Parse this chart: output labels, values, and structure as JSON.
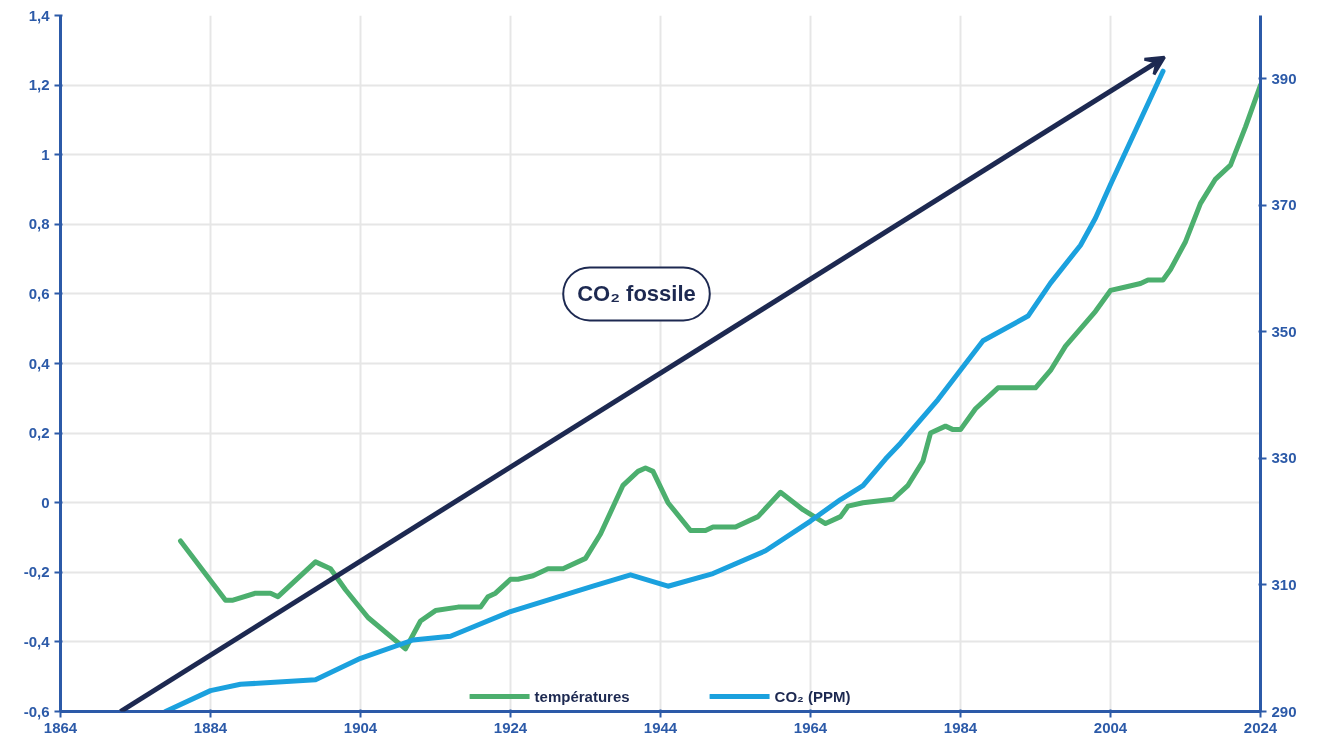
{
  "chart_data": {
    "type": "line",
    "xlim": [
      1864,
      2024
    ],
    "xticks": [
      1864,
      1884,
      1904,
      1924,
      1944,
      1964,
      1984,
      2004,
      2024
    ],
    "ylim": [
      -0.6,
      1.4
    ],
    "yticks": [
      {
        "value": -0.6,
        "label": "-0,6"
      },
      {
        "value": -0.4,
        "label": "-0,4"
      },
      {
        "value": -0.2,
        "label": "-0,2"
      },
      0,
      {
        "value": 0.2,
        "label": "0,2"
      },
      {
        "value": 0.4,
        "label": "0,4"
      },
      {
        "value": 0.6,
        "label": "0,6"
      },
      {
        "value": 0.8,
        "label": "0,8"
      },
      1,
      {
        "value": 1.2,
        "label": "1,2"
      },
      {
        "value": 1.4,
        "label": "1,4"
      }
    ],
    "y2lim": [
      290,
      400
    ],
    "y2ticks": [
      290,
      310,
      330,
      350,
      370,
      390
    ],
    "grid": true,
    "legend": "bottom",
    "line_style": "solid",
    "marker": "none",
    "annotations": [
      "CO₂ fossile"
    ],
    "series": [
      {
        "name": "températures",
        "color": "#4caf6e",
        "x": [
          1880,
          1886,
          1887,
          1890,
          1892,
          1893,
          1898,
          1900,
          1902,
          1905,
          1910,
          1912,
          1914,
          1917,
          1920,
          1921,
          1922,
          1924,
          1925,
          1927,
          1929,
          1931,
          1934,
          1936,
          1939,
          1941,
          1942,
          1943,
          1945,
          1948,
          1950,
          1951,
          1954,
          1957,
          1960,
          1963,
          1966,
          1968,
          1969,
          1971,
          1975,
          1977,
          1979,
          1980,
          1982,
          1983,
          1984,
          1986,
          1988,
          1989,
          1994,
          1996,
          1998,
          2002,
          2004,
          2006,
          2008,
          2009,
          2011,
          2012,
          2014,
          2016,
          2018,
          2020,
          2022,
          2024
        ],
        "values": [
          -0.11,
          -0.28,
          -0.28,
          -0.26,
          -0.26,
          -0.27,
          -0.17,
          -0.19,
          -0.25,
          -0.33,
          -0.42,
          -0.34,
          -0.31,
          -0.3,
          -0.3,
          -0.27,
          -0.26,
          -0.22,
          -0.22,
          -0.21,
          -0.19,
          -0.19,
          -0.16,
          -0.09,
          0.05,
          0.09,
          0.1,
          0.09,
          0.0,
          -0.08,
          -0.08,
          -0.07,
          -0.07,
          -0.04,
          0.03,
          -0.02,
          -0.06,
          -0.04,
          -0.01,
          0.0,
          0.01,
          0.05,
          0.12,
          0.2,
          0.22,
          0.21,
          0.21,
          0.27,
          0.31,
          0.33,
          0.33,
          0.38,
          0.45,
          0.55,
          0.61,
          0.62,
          0.63,
          0.64,
          0.64,
          0.67,
          0.75,
          0.86,
          0.93,
          0.97,
          1.08,
          1.2
        ]
      },
      {
        "name": "CO₂ (PPM)",
        "color": "#1ba1de",
        "axis": "y2",
        "x": [
          1878,
          1884,
          1888,
          1898,
          1904,
          1911,
          1916,
          1924,
          1935,
          1940,
          1945,
          1951,
          1958,
          1964,
          1968,
          1971,
          1974,
          1976,
          1981,
          1987,
          1993,
          1996,
          2000,
          2002,
          2004,
          2011
        ],
        "values": [
          290,
          293.3,
          294.3,
          295,
          298.4,
          301.3,
          301.9,
          305.8,
          309.8,
          311.6,
          309.8,
          311.8,
          315.4,
          320.1,
          323.5,
          325.7,
          329.9,
          332.4,
          339.3,
          348.6,
          352.5,
          357.7,
          363.7,
          368,
          373.3,
          391.2
        ]
      }
    ]
  }
}
